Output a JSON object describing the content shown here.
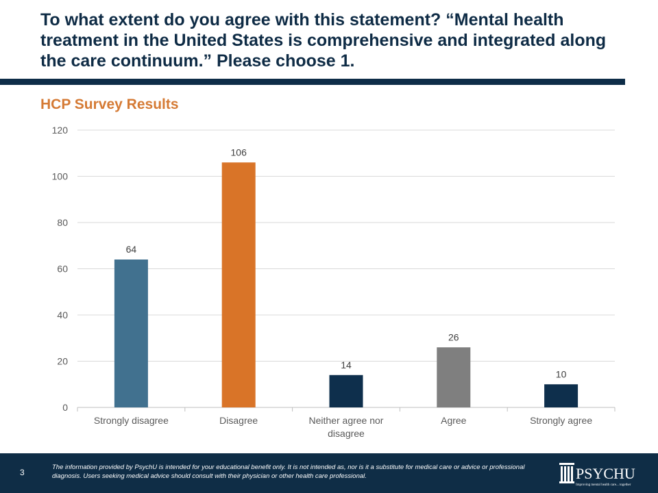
{
  "title": "To what extent do you agree with this statement? “Mental health treatment in the United States is comprehensive and integrated along the care continuum.”  Please choose 1.",
  "subtitle": "HCP Survey Results",
  "chart_data": {
    "type": "bar",
    "categories": [
      "Strongly disagree",
      "Disagree",
      "Neither agree nor disagree",
      "Agree",
      "Strongly agree"
    ],
    "category_lines": [
      [
        "Strongly disagree"
      ],
      [
        "Disagree"
      ],
      [
        "Neither agree nor",
        "disagree"
      ],
      [
        "Agree"
      ],
      [
        "Strongly agree"
      ]
    ],
    "values": [
      64,
      106,
      14,
      26,
      10
    ],
    "colors": [
      "#41718f",
      "#d97428",
      "#0e2f4c",
      "#7f7f7f",
      "#0e2f4c"
    ],
    "ylim": [
      0,
      120
    ],
    "yticks": [
      0,
      20,
      40,
      60,
      80,
      100,
      120
    ],
    "grid": true,
    "data_labels": true
  },
  "footer": {
    "page_number": "3",
    "disclaimer": "The information provided by PsychU is intended for your educational benefit only. It is not intended as, nor is it a substitute for medical care or advice or professional diagnosis. Users seeking medical advice should consult with their physician or other health care professional.",
    "logo_text": "PSYCHU",
    "logo_tagline": "Improving mental health care... together"
  }
}
